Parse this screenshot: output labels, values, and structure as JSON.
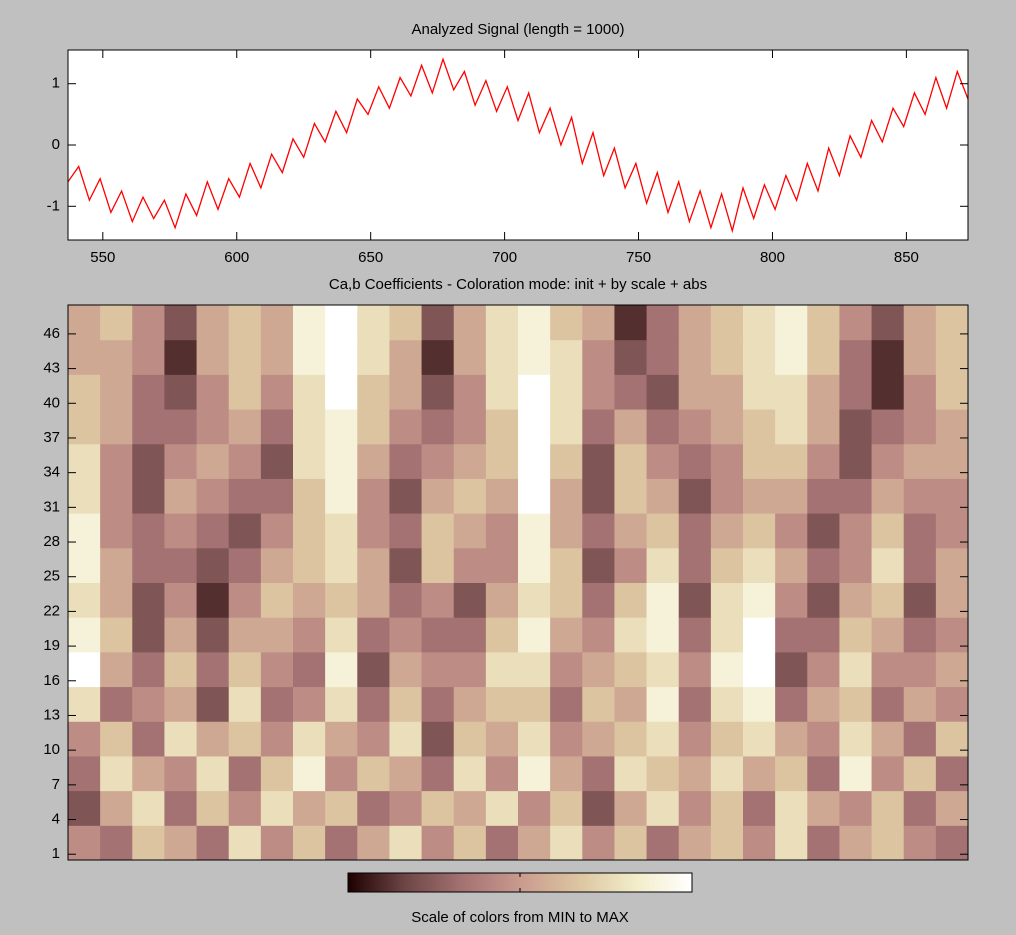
{
  "chart_data": [
    {
      "type": "line",
      "title": "Analyzed Signal (length = 1000)",
      "color": "#ff0000",
      "x": [
        537,
        541,
        545,
        549,
        553,
        557,
        561,
        565,
        569,
        573,
        577,
        581,
        585,
        589,
        593,
        597,
        601,
        605,
        609,
        613,
        617,
        621,
        625,
        629,
        633,
        637,
        641,
        645,
        649,
        653,
        657,
        661,
        665,
        669,
        673,
        677,
        681,
        685,
        689,
        693,
        697,
        701,
        705,
        709,
        713,
        717,
        721,
        725,
        729,
        733,
        737,
        741,
        745,
        749,
        753,
        757,
        761,
        765,
        769,
        773,
        777,
        781,
        785,
        789,
        793,
        797,
        801,
        805,
        809,
        813,
        817,
        821,
        825,
        829,
        833,
        837,
        841,
        845,
        849,
        853,
        857,
        861,
        865,
        869,
        873
      ],
      "values": [
        -0.6,
        -0.35,
        -0.9,
        -0.55,
        -1.1,
        -0.75,
        -1.25,
        -0.85,
        -1.2,
        -0.9,
        -1.35,
        -0.8,
        -1.15,
        -0.6,
        -1.05,
        -0.55,
        -0.85,
        -0.3,
        -0.7,
        -0.15,
        -0.45,
        0.1,
        -0.2,
        0.35,
        0.05,
        0.55,
        0.2,
        0.75,
        0.5,
        0.95,
        0.6,
        1.1,
        0.8,
        1.3,
        0.85,
        1.4,
        0.9,
        1.2,
        0.65,
        1.05,
        0.55,
        0.95,
        0.4,
        0.85,
        0.2,
        0.6,
        0.0,
        0.45,
        -0.3,
        0.2,
        -0.5,
        -0.05,
        -0.7,
        -0.3,
        -0.95,
        -0.45,
        -1.1,
        -0.6,
        -1.25,
        -0.75,
        -1.35,
        -0.8,
        -1.4,
        -0.7,
        -1.2,
        -0.65,
        -1.05,
        -0.5,
        -0.9,
        -0.3,
        -0.75,
        -0.05,
        -0.5,
        0.15,
        -0.2,
        0.4,
        0.05,
        0.6,
        0.3,
        0.85,
        0.5,
        1.1,
        0.6,
        1.2,
        0.75
      ],
      "xlim": [
        537,
        873
      ],
      "ylim": [
        -1.55,
        1.55
      ],
      "xticks": [
        550,
        600,
        650,
        700,
        750,
        800,
        850
      ],
      "yticks": [
        -1,
        0,
        1
      ]
    },
    {
      "type": "heatmap",
      "title": "Ca,b Coefficients - Coloration mode: init + by scale + abs",
      "x_bins": [
        537,
        549,
        561,
        573,
        585,
        597,
        609,
        621,
        633,
        645,
        657,
        669,
        681,
        693,
        705,
        717,
        729,
        741,
        753,
        765,
        777,
        789,
        801,
        813,
        825,
        837,
        849,
        861,
        873
      ],
      "y_bins": [
        0.5,
        3.5,
        6.5,
        9.5,
        12.5,
        15.5,
        18.5,
        21.5,
        24.5,
        27.5,
        30.5,
        33.5,
        36.5,
        39.5,
        42.5,
        45.5,
        48.5
      ],
      "values": [
        [
          4,
          3,
          6,
          5,
          3,
          7,
          4,
          6,
          3,
          5,
          7,
          4,
          6,
          3,
          5,
          7,
          4,
          6,
          3,
          5,
          6,
          4,
          7,
          3,
          5,
          6,
          4,
          3
        ],
        [
          2,
          5,
          7,
          3,
          6,
          4,
          7,
          5,
          6,
          3,
          4,
          6,
          5,
          7,
          4,
          6,
          2,
          5,
          7,
          4,
          6,
          3,
          7,
          5,
          4,
          6,
          3,
          5
        ],
        [
          3,
          7,
          5,
          4,
          7,
          3,
          6,
          8,
          4,
          6,
          5,
          3,
          7,
          4,
          8,
          5,
          3,
          7,
          6,
          5,
          7,
          5,
          6,
          3,
          8,
          4,
          6,
          3
        ],
        [
          4,
          6,
          3,
          7,
          5,
          6,
          4,
          7,
          5,
          4,
          7,
          2,
          6,
          5,
          7,
          4,
          5,
          6,
          7,
          4,
          6,
          7,
          5,
          4,
          7,
          5,
          3,
          6
        ],
        [
          7,
          3,
          4,
          5,
          2,
          7,
          3,
          4,
          7,
          3,
          6,
          3,
          5,
          6,
          6,
          3,
          6,
          5,
          8,
          3,
          7,
          8,
          3,
          5,
          6,
          3,
          5,
          4
        ],
        [
          9,
          5,
          3,
          6,
          3,
          6,
          4,
          3,
          8,
          2,
          5,
          4,
          4,
          7,
          7,
          4,
          5,
          6,
          7,
          4,
          8,
          9,
          2,
          4,
          7,
          4,
          4,
          5
        ],
        [
          8,
          6,
          2,
          5,
          2,
          5,
          5,
          4,
          7,
          3,
          4,
          3,
          3,
          6,
          8,
          5,
          4,
          7,
          8,
          3,
          7,
          9,
          3,
          3,
          6,
          5,
          3,
          4
        ],
        [
          7,
          5,
          2,
          4,
          1,
          4,
          6,
          5,
          6,
          5,
          3,
          4,
          2,
          5,
          7,
          6,
          3,
          6,
          8,
          2,
          7,
          8,
          4,
          2,
          5,
          6,
          2,
          5
        ],
        [
          8,
          5,
          3,
          3,
          2,
          3,
          5,
          6,
          7,
          5,
          2,
          6,
          4,
          4,
          8,
          6,
          2,
          4,
          7,
          3,
          6,
          7,
          5,
          3,
          4,
          7,
          3,
          5
        ],
        [
          8,
          4,
          3,
          4,
          3,
          2,
          4,
          6,
          7,
          4,
          3,
          6,
          5,
          4,
          8,
          5,
          3,
          5,
          6,
          3,
          5,
          6,
          4,
          2,
          4,
          6,
          3,
          4
        ],
        [
          7,
          4,
          2,
          5,
          4,
          3,
          3,
          6,
          8,
          4,
          2,
          5,
          6,
          5,
          9,
          5,
          2,
          6,
          5,
          2,
          4,
          5,
          5,
          3,
          3,
          5,
          4,
          4
        ],
        [
          7,
          4,
          2,
          4,
          5,
          4,
          2,
          7,
          8,
          5,
          3,
          4,
          5,
          6,
          9,
          6,
          2,
          6,
          4,
          3,
          4,
          6,
          6,
          4,
          2,
          4,
          5,
          5
        ],
        [
          6,
          5,
          3,
          3,
          4,
          5,
          3,
          7,
          8,
          6,
          4,
          3,
          4,
          6,
          9,
          7,
          3,
          5,
          3,
          4,
          5,
          6,
          7,
          5,
          2,
          3,
          4,
          5
        ],
        [
          6,
          5,
          3,
          2,
          4,
          6,
          4,
          7,
          9,
          6,
          5,
          2,
          4,
          7,
          9,
          7,
          4,
          3,
          2,
          5,
          5,
          7,
          7,
          5,
          3,
          1,
          4,
          6
        ],
        [
          5,
          5,
          4,
          1,
          5,
          6,
          5,
          8,
          9,
          7,
          5,
          1,
          5,
          7,
          8,
          7,
          4,
          2,
          3,
          5,
          6,
          7,
          8,
          6,
          3,
          1,
          5,
          6
        ],
        [
          5,
          6,
          4,
          2,
          5,
          6,
          5,
          8,
          9,
          7,
          6,
          2,
          5,
          7,
          8,
          6,
          5,
          1,
          3,
          5,
          6,
          7,
          8,
          6,
          4,
          2,
          5,
          6
        ]
      ],
      "clim": [
        0,
        9
      ],
      "xlim": [
        537,
        873
      ],
      "ylim": [
        0.5,
        48.5
      ],
      "yticks": [
        1,
        4,
        7,
        10,
        13,
        16,
        19,
        22,
        25,
        28,
        31,
        34,
        37,
        40,
        43,
        46
      ],
      "colormap": [
        "#1e0000",
        "#6e4646",
        "#a47272",
        "#c99a8e",
        "#dcc4a0",
        "#f2ecc8",
        "#ffffff"
      ],
      "colorbar_label": "Scale of colors from MIN to MAX"
    }
  ]
}
